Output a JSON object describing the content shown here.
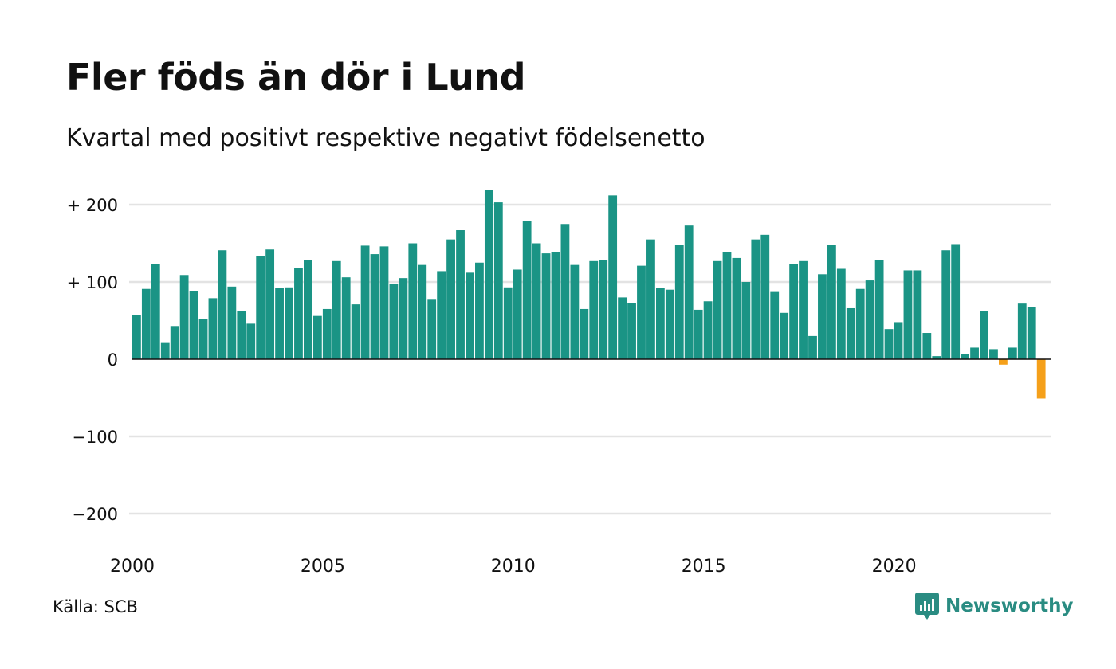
{
  "title": "Fler föds än dör i Lund",
  "subtitle": "Kvartal med positivt respektive negativt födelsenetto",
  "source": "Källa: SCB",
  "brand": {
    "name": "Newsworthy",
    "logo_icon": "newsworthy-logo-icon",
    "color": "#2a8c82"
  },
  "colors": {
    "positive": "#1a9485",
    "negative": "#f5a01a",
    "grid": "#e3e3e3",
    "zero_line": "#111111"
  },
  "chart_data": {
    "type": "bar",
    "title": "Fler föds än dör i Lund",
    "subtitle": "Kvartal med positivt respektive negativt födelsenetto",
    "xlabel": "",
    "ylabel": "",
    "ylim": [
      -240,
      240
    ],
    "yticks": [
      200,
      100,
      0,
      -100,
      -200
    ],
    "ytick_labels": [
      "+ 200",
      "+ 100",
      "0",
      "−100",
      "−200"
    ],
    "xticks": [
      2000,
      2005,
      2010,
      2015,
      2020
    ],
    "xtick_labels": [
      "2000",
      "2005",
      "2010",
      "2015",
      "2020"
    ],
    "x_start": 2000,
    "quarters_per_year": 4,
    "grid": true,
    "values": [
      57,
      91,
      123,
      21,
      43,
      109,
      88,
      52,
      79,
      141,
      94,
      62,
      46,
      134,
      142,
      92,
      93,
      118,
      128,
      56,
      65,
      127,
      106,
      71,
      147,
      136,
      146,
      97,
      105,
      150,
      122,
      77,
      114,
      155,
      167,
      112,
      125,
      219,
      203,
      93,
      116,
      179,
      150,
      137,
      139,
      175,
      122,
      65,
      127,
      128,
      212,
      80,
      73,
      121,
      155,
      92,
      90,
      148,
      173,
      64,
      75,
      127,
      139,
      131,
      100,
      155,
      161,
      87,
      60,
      123,
      127,
      30,
      110,
      148,
      117,
      66,
      91,
      102,
      128,
      39,
      48,
      115,
      115,
      34,
      4,
      141,
      149,
      7,
      15,
      62,
      13,
      -7,
      15,
      72,
      68,
      -51
    ]
  }
}
